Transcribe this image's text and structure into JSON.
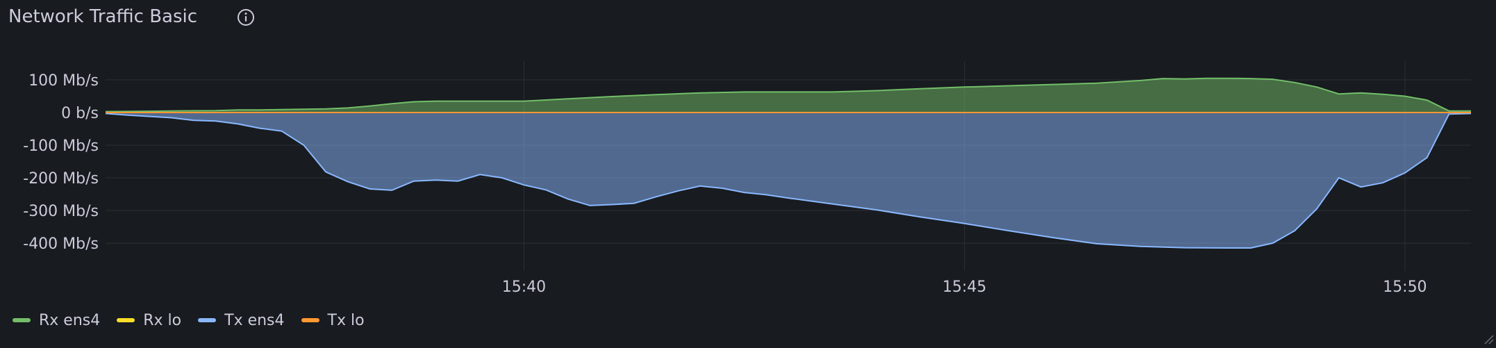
{
  "panel": {
    "title": "Network Traffic Basic",
    "info_icon": "info-circle-icon"
  },
  "legend": [
    {
      "label": "Rx ens4",
      "color": "#73bf69"
    },
    {
      "label": "Rx lo",
      "color": "#fade2a"
    },
    {
      "label": "Tx ens4",
      "color": "#8ab8ff"
    },
    {
      "label": "Tx lo",
      "color": "#ff9830"
    }
  ],
  "chart_data": {
    "type": "area",
    "xlabel": "",
    "ylabel": "",
    "y_unit": "Mb/s",
    "y_ticks": [
      {
        "value": 100,
        "label": "100 Mb/s"
      },
      {
        "value": 0,
        "label": "0 b/s"
      },
      {
        "value": -100,
        "label": "-100 Mb/s"
      },
      {
        "value": -200,
        "label": "-200 Mb/s"
      },
      {
        "value": -300,
        "label": "-300 Mb/s"
      },
      {
        "value": -400,
        "label": "-400 Mb/s"
      }
    ],
    "x_ticks": [
      {
        "value": "15:40",
        "label": "15:40"
      },
      {
        "value": "15:45",
        "label": "15:45"
      },
      {
        "value": "15:50",
        "label": "15:50"
      }
    ],
    "xlim": [
      "15:35:15",
      "15:50:45"
    ],
    "ylim": [
      -480,
      160
    ],
    "grid": true,
    "legend_position": "bottom-left",
    "series": [
      {
        "name": "Rx ens4",
        "color": "#73bf69",
        "fill": true,
        "points": [
          [
            "15:35:15",
            3
          ],
          [
            "15:35:45",
            4
          ],
          [
            "15:36:00",
            5
          ],
          [
            "15:36:30",
            6
          ],
          [
            "15:36:45",
            8
          ],
          [
            "15:37:00",
            8
          ],
          [
            "15:37:15",
            9
          ],
          [
            "15:37:30",
            10
          ],
          [
            "15:37:45",
            11
          ],
          [
            "15:38:00",
            14
          ],
          [
            "15:38:15",
            20
          ],
          [
            "15:38:30",
            27
          ],
          [
            "15:38:45",
            33
          ],
          [
            "15:39:00",
            35
          ],
          [
            "15:39:30",
            35
          ],
          [
            "15:40:00",
            35
          ],
          [
            "15:40:30",
            42
          ],
          [
            "15:41:00",
            49
          ],
          [
            "15:41:30",
            55
          ],
          [
            "15:42:00",
            60
          ],
          [
            "15:42:30",
            63
          ],
          [
            "15:43:00",
            63
          ],
          [
            "15:43:30",
            63
          ],
          [
            "15:44:00",
            67
          ],
          [
            "15:44:30",
            73
          ],
          [
            "15:45:00",
            78
          ],
          [
            "15:45:30",
            82
          ],
          [
            "15:46:00",
            86
          ],
          [
            "15:46:30",
            90
          ],
          [
            "15:47:00",
            98
          ],
          [
            "15:47:15",
            104
          ],
          [
            "15:47:30",
            103
          ],
          [
            "15:47:45",
            105
          ],
          [
            "15:48:00",
            105
          ],
          [
            "15:48:15",
            104
          ],
          [
            "15:48:30",
            102
          ],
          [
            "15:48:45",
            92
          ],
          [
            "15:49:00",
            78
          ],
          [
            "15:49:15",
            57
          ],
          [
            "15:49:30",
            60
          ],
          [
            "15:49:45",
            56
          ],
          [
            "15:50:00",
            50
          ],
          [
            "15:50:15",
            38
          ],
          [
            "15:50:30",
            5
          ],
          [
            "15:50:45",
            5
          ]
        ]
      },
      {
        "name": "Rx lo",
        "color": "#fade2a",
        "fill": false,
        "points": [
          [
            "15:35:15",
            0
          ],
          [
            "15:50:45",
            0
          ]
        ]
      },
      {
        "name": "Tx ens4",
        "color": "#8ab8ff",
        "fill": true,
        "points": [
          [
            "15:35:15",
            -3
          ],
          [
            "15:35:30",
            -8
          ],
          [
            "15:35:45",
            -12
          ],
          [
            "15:36:00",
            -16
          ],
          [
            "15:36:15",
            -24
          ],
          [
            "15:36:30",
            -26
          ],
          [
            "15:36:45",
            -35
          ],
          [
            "15:37:00",
            -48
          ],
          [
            "15:37:15",
            -57
          ],
          [
            "15:37:30",
            -100
          ],
          [
            "15:37:45",
            -182
          ],
          [
            "15:38:00",
            -212
          ],
          [
            "15:38:15",
            -234
          ],
          [
            "15:38:30",
            -238
          ],
          [
            "15:38:45",
            -210
          ],
          [
            "15:39:00",
            -207
          ],
          [
            "15:39:15",
            -210
          ],
          [
            "15:39:30",
            -190
          ],
          [
            "15:39:45",
            -200
          ],
          [
            "15:40:00",
            -222
          ],
          [
            "15:40:15",
            -237
          ],
          [
            "15:40:30",
            -265
          ],
          [
            "15:40:45",
            -285
          ],
          [
            "15:41:00",
            -282
          ],
          [
            "15:41:15",
            -278
          ],
          [
            "15:41:30",
            -258
          ],
          [
            "15:41:45",
            -240
          ],
          [
            "15:42:00",
            -225
          ],
          [
            "15:42:15",
            -232
          ],
          [
            "15:42:30",
            -245
          ],
          [
            "15:42:45",
            -252
          ],
          [
            "15:43:00",
            -262
          ],
          [
            "15:43:30",
            -280
          ],
          [
            "15:44:00",
            -298
          ],
          [
            "15:44:30",
            -320
          ],
          [
            "15:45:00",
            -340
          ],
          [
            "15:45:30",
            -362
          ],
          [
            "15:46:00",
            -383
          ],
          [
            "15:46:30",
            -402
          ],
          [
            "15:47:00",
            -410
          ],
          [
            "15:47:30",
            -414
          ],
          [
            "15:48:00",
            -415
          ],
          [
            "15:48:15",
            -415
          ],
          [
            "15:48:30",
            -400
          ],
          [
            "15:48:45",
            -362
          ],
          [
            "15:49:00",
            -295
          ],
          [
            "15:49:15",
            -200
          ],
          [
            "15:49:30",
            -228
          ],
          [
            "15:49:45",
            -215
          ],
          [
            "15:50:00",
            -185
          ],
          [
            "15:50:15",
            -138
          ],
          [
            "15:50:30",
            -5
          ],
          [
            "15:50:45",
            -3
          ]
        ]
      },
      {
        "name": "Tx lo",
        "color": "#ff9830",
        "fill": false,
        "points": [
          [
            "15:35:15",
            0
          ],
          [
            "15:50:45",
            0
          ]
        ]
      }
    ]
  }
}
